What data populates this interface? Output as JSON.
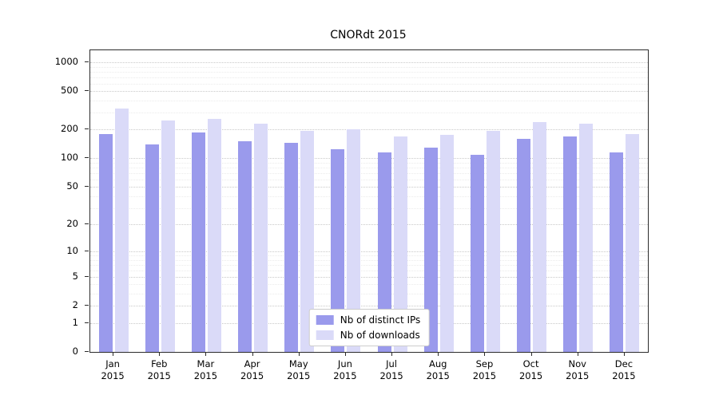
{
  "chart_data": {
    "type": "bar",
    "title": "CNORdt 2015",
    "categories": [
      "Jan",
      "Feb",
      "Mar",
      "Apr",
      "May",
      "Jun",
      "Jul",
      "Aug",
      "Sep",
      "Oct",
      "Nov",
      "Dec"
    ],
    "category_year": "2015",
    "series": [
      {
        "name": "Nb of distinct IPs",
        "color": "#9a9aec",
        "values": [
          180,
          140,
          185,
          150,
          145,
          125,
          115,
          130,
          110,
          160,
          170,
          115
        ]
      },
      {
        "name": "Nb of downloads",
        "color": "#dadaf8",
        "values": [
          330,
          250,
          260,
          230,
          195,
          200,
          170,
          175,
          195,
          240,
          230,
          180
        ]
      }
    ],
    "yscale": "log1p",
    "yticks": [
      0,
      1,
      2,
      5,
      10,
      20,
      50,
      100,
      200,
      500,
      1000
    ],
    "ylim": [
      0,
      1330
    ],
    "grid": "horizontal-major-and-minor",
    "legend_position": "lower center"
  }
}
